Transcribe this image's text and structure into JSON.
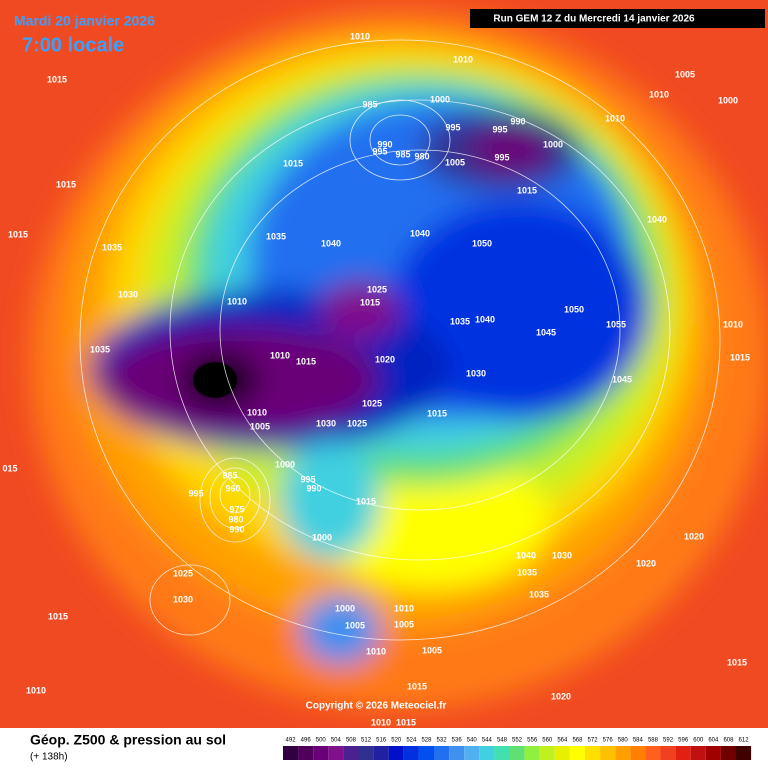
{
  "header": {
    "date": "Mardi 20 janvier 2026",
    "time": "7:00 locale",
    "run": "Run GEM 12 Z du Mercredi 14 janvier 2026"
  },
  "footer": {
    "title": "Géop. Z500 & pression au sol",
    "lead": "(+ 138h)",
    "copyright": "Copyright © 2026 Meteociel.fr"
  },
  "colorbar": {
    "values": [
      492,
      496,
      500,
      504,
      508,
      512,
      516,
      520,
      524,
      528,
      532,
      536,
      540,
      544,
      548,
      552,
      556,
      560,
      564,
      568,
      572,
      576,
      580,
      584,
      588,
      592,
      596,
      600,
      604,
      608,
      612
    ],
    "colors": [
      "#300040",
      "#50005a",
      "#6a0078",
      "#80108c",
      "#4b2090",
      "#303090",
      "#2020a0",
      "#0010c8",
      "#0030e0",
      "#0050f0",
      "#2070f0",
      "#4090f0",
      "#50b0f0",
      "#40d0e0",
      "#40e0b0",
      "#60e070",
      "#90f040",
      "#c0f020",
      "#e8f000",
      "#ffff00",
      "#ffe000",
      "#ffc000",
      "#ffa000",
      "#ff8000",
      "#ff6020",
      "#f04020",
      "#e02010",
      "#c01010",
      "#a00000",
      "#700000",
      "#400000"
    ]
  },
  "map": {
    "labels": [
      "1010",
      "1015",
      "1010",
      "1005",
      "1010",
      "1000",
      "985",
      "1000",
      "990",
      "995",
      "995",
      "1000",
      "1010",
      "990",
      "995",
      "985",
      "980",
      "1005",
      "995",
      "1015",
      "1015",
      "1015",
      "1040",
      "1015",
      "1035",
      "1035",
      "1040",
      "1040",
      "1050",
      "1030",
      "1010",
      "1025",
      "1015",
      "1035",
      "1040",
      "1050",
      "1055",
      "1045",
      "1010",
      "1035",
      "1010",
      "1015",
      "1020",
      "1015",
      "1030",
      "1045",
      "1025",
      "1010",
      "1005",
      "1030",
      "1025",
      "1015",
      "015",
      "1000",
      "995",
      "990",
      "985",
      "960",
      "995",
      "975",
      "980",
      "990",
      "1015",
      "1000",
      "1020",
      "1040",
      "1030",
      "1035",
      "1020",
      "1025",
      "1030",
      "1035",
      "1015",
      "1000",
      "1010",
      "1005",
      "1005",
      "1010",
      "1005",
      "1015",
      "1015",
      "1010",
      "1020",
      "1010",
      "1015"
    ]
  }
}
